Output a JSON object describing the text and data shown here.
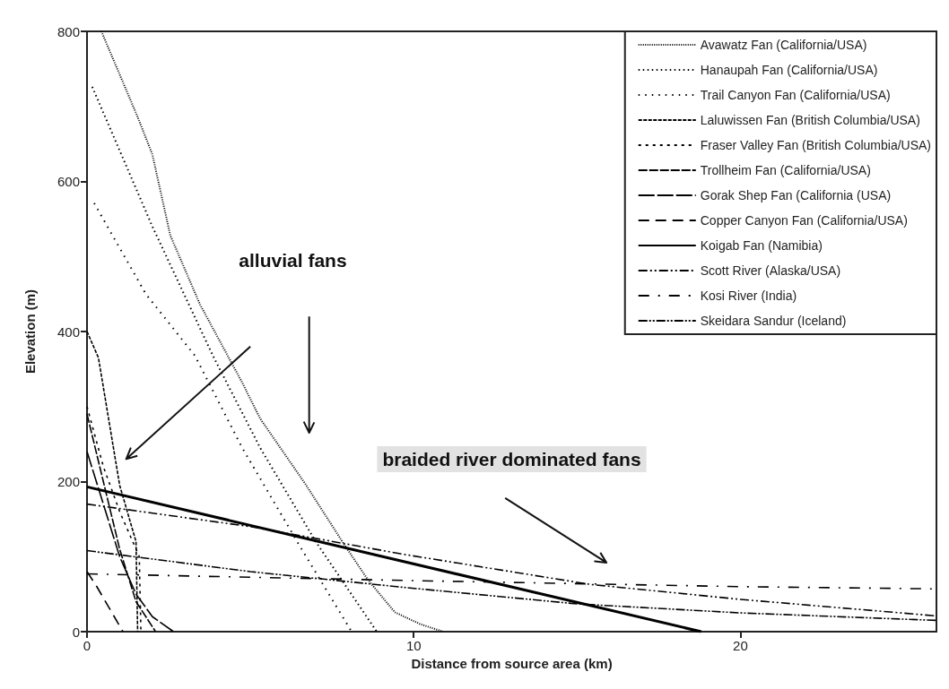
{
  "chart_data": {
    "type": "line",
    "xlabel": "Distance from source area (km)",
    "ylabel": "Elevation (m)",
    "xlim": [
      0,
      26
    ],
    "xticks": [
      0,
      10,
      20
    ],
    "ylim": [
      0,
      800
    ],
    "yticks": [
      0,
      200,
      400,
      600,
      800
    ],
    "grid": false,
    "legend": "top right",
    "marker": "none",
    "annotations": [
      "alluvial fans",
      "braided river dominated fans"
    ],
    "series": [
      {
        "name": "Avawatz Fan (California/USA)",
        "color": "#000000",
        "line_style": "dotted",
        "x": [
          0.44,
          1.54,
          2.0,
          2.55,
          3.46,
          4.75,
          5.3,
          6.68,
          7.86,
          8.6,
          9.42,
          10.2,
          10.9
        ],
        "values": [
          800,
          687,
          636,
          528,
          436,
          332,
          284,
          197,
          117,
          69,
          26,
          10,
          0
        ]
      },
      {
        "name": "Hanaupah Fan (California/USA)",
        "color": "#000000",
        "line_style": "dotted",
        "x": [
          0.16,
          2.0,
          3.85,
          5.3,
          7.0,
          8.87
        ],
        "values": [
          726,
          540,
          368,
          245,
          120,
          0
        ]
      },
      {
        "name": "Trail Canyon Fan (California/USA)",
        "color": "#000000",
        "line_style": "dotted",
        "x": [
          0.22,
          1.8,
          3.3,
          4.75,
          6.5,
          8.1
        ],
        "values": [
          571,
          450,
          368,
          245,
          115,
          0
        ]
      },
      {
        "name": "Laluwissen Fan (British Columbia/USA)",
        "color": "#000000",
        "line_style": "dashed",
        "x": [
          0,
          0.35,
          1.0,
          1.5,
          1.55
        ],
        "values": [
          400,
          365,
          195,
          120,
          0
        ]
      },
      {
        "name": "Fraser Valley Fan (British Columbia/USA)",
        "color": "#000000",
        "line_style": "dashed",
        "x": [
          0,
          0.5,
          1.0,
          1.6,
          1.65
        ],
        "values": [
          300,
          220,
          160,
          100,
          0
        ]
      },
      {
        "name": "Trollheim Fan (California/USA)",
        "color": "#000000",
        "line_style": "dashed",
        "x": [
          0,
          0.5,
          1.0,
          1.5,
          2.1
        ],
        "values": [
          290,
          200,
          110,
          40,
          0
        ]
      },
      {
        "name": "Gorak Shep Fan (California (USA)",
        "color": "#000000",
        "line_style": "dashed",
        "x": [
          0,
          0.5,
          1.0,
          1.5,
          2.0,
          2.65
        ],
        "values": [
          240,
          170,
          100,
          50,
          20,
          0
        ]
      },
      {
        "name": "Copper Canyon Fan (California/USA)",
        "color": "#000000",
        "line_style": "dashed",
        "x": [
          0,
          0.3,
          1.1
        ],
        "values": [
          80,
          60,
          0
        ]
      },
      {
        "name": "Koigab Fan (Namibia)",
        "color": "#000000",
        "line_style": "solid",
        "x": [
          0,
          18.8
        ],
        "values": [
          193,
          0
        ]
      },
      {
        "name": "Scott River (Alaska/USA)",
        "color": "#000000",
        "line_style": "dashed",
        "x": [
          0,
          5,
          9.7,
          15.4,
          20,
          26
        ],
        "values": [
          170,
          140,
          103,
          63,
          43,
          21
        ]
      },
      {
        "name": "Kosi River (India)",
        "color": "#000000",
        "line_style": "dashed",
        "x": [
          0,
          10,
          20,
          26
        ],
        "values": [
          77,
          68,
          60,
          57
        ]
      },
      {
        "name": "Skeidara Sandur (Iceland)",
        "color": "#000000",
        "line_style": "dashed",
        "x": [
          0,
          5,
          9.7,
          15,
          20,
          26
        ],
        "values": [
          108,
          80,
          59,
          37,
          25,
          15
        ]
      }
    ]
  }
}
